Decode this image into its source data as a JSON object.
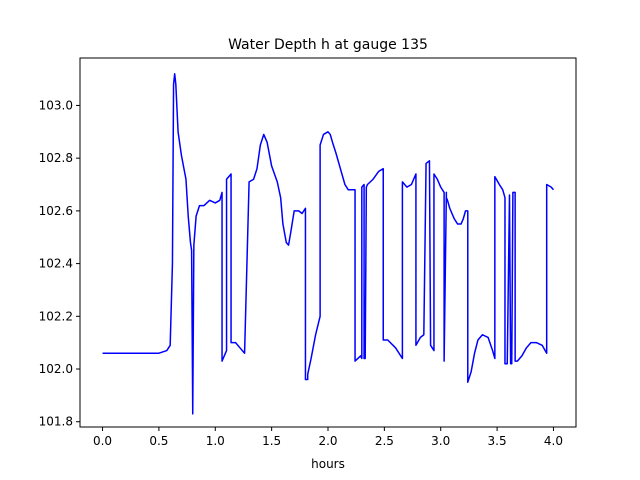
{
  "chart_data": {
    "type": "line",
    "title": "Water Depth h at gauge 135",
    "xlabel": "hours",
    "ylabel": "",
    "xlim": [
      -0.2,
      4.2
    ],
    "ylim": [
      101.78,
      103.18
    ],
    "xticks": [
      0.0,
      0.5,
      1.0,
      1.5,
      2.0,
      2.5,
      3.0,
      3.5,
      4.0
    ],
    "xtick_labels": [
      "0.0",
      "0.5",
      "1.0",
      "1.5",
      "2.0",
      "2.5",
      "3.0",
      "3.5",
      "4.0"
    ],
    "yticks": [
      101.8,
      102.0,
      102.2,
      102.4,
      102.6,
      102.8,
      103.0
    ],
    "ytick_labels": [
      "101.8",
      "102.0",
      "102.2",
      "102.4",
      "102.6",
      "102.8",
      "103.0"
    ],
    "grid": false,
    "legend": "none",
    "series": [
      {
        "color": "#0000ff",
        "x": [
          0.0,
          0.5,
          0.57,
          0.6,
          0.62,
          0.63,
          0.64,
          0.65,
          0.67,
          0.7,
          0.74,
          0.76,
          0.78,
          0.79,
          0.8,
          0.8,
          0.81,
          0.83,
          0.86,
          0.9,
          0.95,
          1.0,
          1.04,
          1.06,
          1.06,
          1.1,
          1.1,
          1.14,
          1.14,
          1.18,
          1.22,
          1.26,
          1.3,
          1.3,
          1.34,
          1.37,
          1.4,
          1.43,
          1.46,
          1.5,
          1.55,
          1.58,
          1.6,
          1.63,
          1.65,
          1.67,
          1.7,
          1.74,
          1.77,
          1.8,
          1.8,
          1.82,
          1.82,
          1.85,
          1.89,
          1.93,
          1.93,
          1.96,
          2.0,
          2.02,
          2.04,
          2.07,
          2.11,
          2.15,
          2.18,
          2.22,
          2.24,
          2.24,
          2.29,
          2.3,
          2.3,
          2.32,
          2.32,
          2.33,
          2.34,
          2.35,
          2.4,
          2.45,
          2.49,
          2.49,
          2.53,
          2.6,
          2.66,
          2.66,
          2.7,
          2.74,
          2.78,
          2.78,
          2.82,
          2.85,
          2.87,
          2.9,
          2.91,
          2.94,
          2.94,
          2.97,
          3.0,
          3.03,
          3.03,
          3.05,
          3.05,
          3.06,
          3.08,
          3.12,
          3.15,
          3.18,
          3.2,
          3.22,
          3.24,
          3.24,
          3.27,
          3.3,
          3.33,
          3.37,
          3.42,
          3.46,
          3.48,
          3.48,
          3.52,
          3.55,
          3.57,
          3.57,
          3.59,
          3.61,
          3.61,
          3.62,
          3.63,
          3.64,
          3.64,
          3.66,
          3.66,
          3.68,
          3.72,
          3.76,
          3.8,
          3.85,
          3.9,
          3.94,
          3.94,
          3.98,
          4.0
        ],
        "y": [
          102.06,
          102.06,
          102.07,
          102.09,
          102.4,
          103.08,
          103.12,
          103.08,
          102.9,
          102.81,
          102.72,
          102.58,
          102.48,
          102.45,
          101.84,
          101.83,
          102.47,
          102.58,
          102.62,
          102.62,
          102.64,
          102.63,
          102.64,
          102.67,
          102.03,
          102.07,
          102.72,
          102.74,
          102.1,
          102.1,
          102.08,
          102.06,
          102.71,
          102.71,
          102.72,
          102.76,
          102.85,
          102.89,
          102.86,
          102.77,
          102.71,
          102.65,
          102.55,
          102.48,
          102.47,
          102.52,
          102.6,
          102.6,
          102.59,
          102.61,
          101.96,
          101.96,
          101.98,
          102.04,
          102.13,
          102.2,
          102.85,
          102.89,
          102.9,
          102.89,
          102.86,
          102.82,
          102.76,
          102.7,
          102.68,
          102.68,
          102.68,
          102.03,
          102.05,
          102.04,
          102.69,
          102.7,
          102.04,
          102.04,
          102.69,
          102.7,
          102.72,
          102.75,
          102.76,
          102.11,
          102.11,
          102.08,
          102.04,
          102.71,
          102.69,
          102.7,
          102.74,
          102.09,
          102.12,
          102.13,
          102.78,
          102.79,
          102.09,
          102.07,
          102.74,
          102.72,
          102.69,
          102.67,
          102.03,
          102.67,
          102.65,
          102.64,
          102.61,
          102.57,
          102.55,
          102.55,
          102.57,
          102.6,
          102.6,
          101.95,
          101.99,
          102.06,
          102.11,
          102.13,
          102.12,
          102.07,
          102.04,
          102.73,
          102.7,
          102.68,
          102.65,
          102.02,
          102.02,
          102.66,
          102.66,
          102.02,
          102.02,
          102.66,
          102.67,
          102.67,
          102.03,
          102.03,
          102.05,
          102.08,
          102.1,
          102.1,
          102.09,
          102.06,
          102.7,
          102.69,
          102.68
        ]
      }
    ]
  }
}
